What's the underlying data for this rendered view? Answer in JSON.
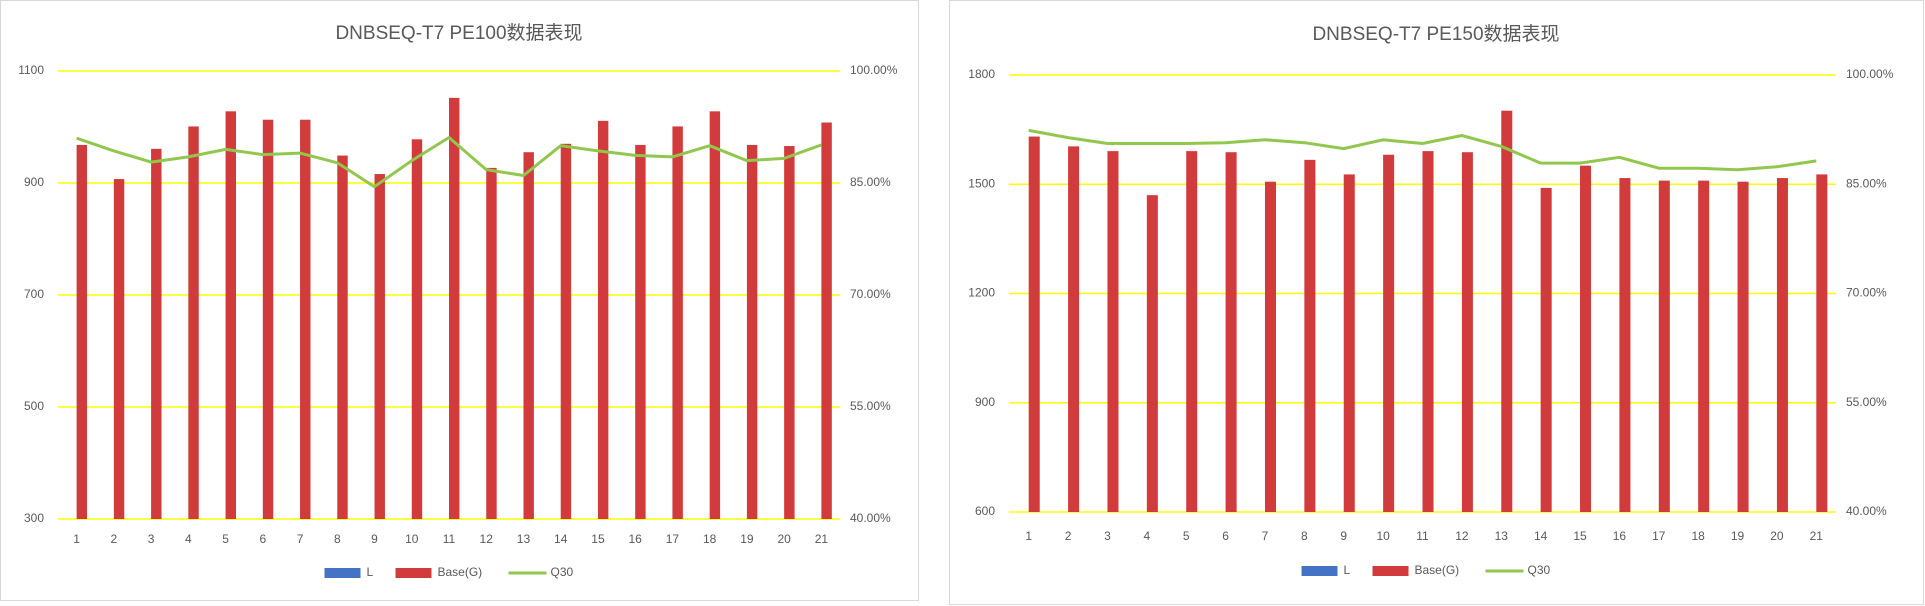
{
  "chart_data": [
    {
      "type": "bar_line",
      "title": "DNBSEQ-T7 PE100数据表现",
      "categories": [
        "1",
        "2",
        "3",
        "4",
        "5",
        "6",
        "7",
        "8",
        "9",
        "10",
        "11",
        "12",
        "13",
        "14",
        "15",
        "16",
        "17",
        "18",
        "19",
        "20",
        "21"
      ],
      "series": [
        {
          "name": "L",
          "color": "#4472c4",
          "values": [
            null,
            null,
            null,
            null,
            null,
            null,
            null,
            null,
            null,
            null,
            null,
            null,
            null,
            null,
            null,
            null,
            null,
            null,
            null,
            null,
            null
          ]
        },
        {
          "name": "Base(G)",
          "color": "#d13b3b",
          "values": [
            968,
            907,
            961,
            1001,
            1028,
            1013,
            1013,
            949,
            916,
            978,
            1052,
            927,
            955,
            970,
            1011,
            968,
            1001,
            1028,
            968,
            966,
            1008
          ]
        },
        {
          "name": "Q30",
          "color": "#92c74e",
          "axis": "y2",
          "values": [
            91.0,
            89.3,
            87.8,
            88.5,
            89.5,
            88.8,
            89.0,
            87.7,
            84.5,
            88.0,
            91.1,
            86.8,
            86.0,
            90.0,
            89.3,
            88.7,
            88.5,
            90.0,
            88.0,
            88.3,
            90.1
          ]
        }
      ],
      "ylim": [
        300,
        1100
      ],
      "yticks": [
        300,
        500,
        700,
        900,
        1100
      ],
      "y2lim": [
        40,
        100
      ],
      "y2ticks": [
        {
          "value": 40,
          "label": "40.00%"
        },
        {
          "value": 55,
          "label": "55.00%"
        },
        {
          "value": 70,
          "label": "70.00%"
        },
        {
          "value": 85,
          "label": "85.00%"
        },
        {
          "value": 100,
          "label": "100.00%"
        }
      ],
      "grid": true,
      "grid_color": "#ffff00",
      "legend": "bottom"
    },
    {
      "type": "bar_line",
      "title": "DNBSEQ-T7 PE150数据表现",
      "categories": [
        "1",
        "2",
        "3",
        "4",
        "5",
        "6",
        "7",
        "8",
        "9",
        "10",
        "11",
        "12",
        "13",
        "14",
        "15",
        "16",
        "17",
        "18",
        "19",
        "20",
        "21"
      ],
      "series": [
        {
          "name": "L",
          "color": "#4472c4",
          "values": [
            null,
            null,
            null,
            null,
            null,
            null,
            null,
            null,
            null,
            null,
            null,
            null,
            null,
            null,
            null,
            null,
            null,
            null,
            null,
            null,
            null
          ]
        },
        {
          "name": "Base(G)",
          "color": "#d13b3b",
          "values": [
            1631,
            1604,
            1591,
            1470,
            1591,
            1588,
            1507,
            1567,
            1527,
            1581,
            1591,
            1588,
            1702,
            1490,
            1551,
            1517,
            1510,
            1510,
            1507,
            1517,
            1527
          ]
        },
        {
          "name": "Q30",
          "color": "#92c74e",
          "axis": "y2",
          "values": [
            92.4,
            91.4,
            90.6,
            90.6,
            90.6,
            90.7,
            91.1,
            90.7,
            89.9,
            91.1,
            90.6,
            91.7,
            90.2,
            87.9,
            87.9,
            88.7,
            87.2,
            87.2,
            87.0,
            87.4,
            88.2
          ]
        }
      ],
      "ylim": [
        600,
        1800
      ],
      "yticks": [
        600,
        900,
        1200,
        1500,
        1800
      ],
      "y2lim": [
        40,
        100
      ],
      "y2ticks": [
        {
          "value": 40,
          "label": "40.00%"
        },
        {
          "value": 55,
          "label": "55.00%"
        },
        {
          "value": 70,
          "label": "70.00%"
        },
        {
          "value": 85,
          "label": "85.00%"
        },
        {
          "value": 100,
          "label": "100.00%"
        }
      ],
      "grid": true,
      "grid_color": "#ffff00",
      "legend": "bottom"
    }
  ]
}
